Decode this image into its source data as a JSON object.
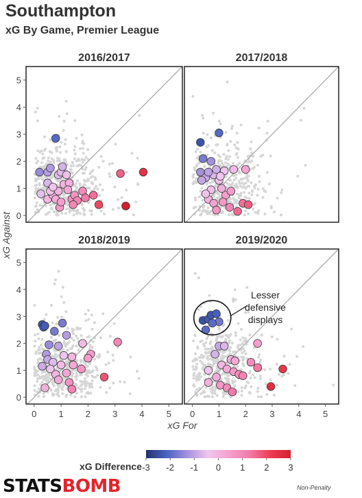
{
  "header": {
    "title": "Southampton",
    "subtitle": "xG By Game, Premier League"
  },
  "legend": {
    "title": "xG Difference",
    "ticks": [
      "-3",
      "-2",
      "-1",
      "0",
      "1",
      "2",
      "3"
    ],
    "colors": [
      "#23306e",
      "#4a63c2",
      "#a592dd",
      "#efc6ee",
      "#f5a0cf",
      "#f27cab",
      "#ee3d55",
      "#d3202f"
    ]
  },
  "footer": {
    "brand_part1": "STATS",
    "brand_part2": "BOMB",
    "note": "Non-Penalty"
  },
  "chart_data": {
    "type": "scatter",
    "xlabel": "xG For",
    "ylabel": "xG Against",
    "xlim": [
      -0.3,
      5.5
    ],
    "ylim": [
      -0.25,
      5.5
    ],
    "x_ticks": [
      0,
      1,
      2,
      3,
      4,
      5
    ],
    "y_ticks": [
      0,
      1,
      2,
      3,
      4,
      5
    ],
    "grid": false,
    "reference_line": "y = x",
    "panels": [
      {
        "title": "2016/2017",
        "points": [
          [
            0.8,
            2.85
          ],
          [
            0.2,
            1.6
          ],
          [
            0.5,
            1.6
          ],
          [
            0.6,
            1.75
          ],
          [
            0.9,
            1.5
          ],
          [
            1.0,
            1.6
          ],
          [
            1.2,
            1.5
          ],
          [
            0.5,
            1.2
          ],
          [
            1.05,
            1.8
          ],
          [
            0.25,
            0.8
          ],
          [
            0.5,
            0.6
          ],
          [
            0.7,
            0.75
          ],
          [
            0.6,
            0.9
          ],
          [
            0.8,
            0.6
          ],
          [
            0.9,
            0.9
          ],
          [
            0.95,
            0.3
          ],
          [
            1.0,
            0.5
          ],
          [
            1.1,
            1.15
          ],
          [
            1.3,
            1.2
          ],
          [
            1.25,
            0.95
          ],
          [
            1.4,
            0.6
          ],
          [
            1.5,
            0.75
          ],
          [
            1.6,
            0.55
          ],
          [
            1.8,
            0.9
          ],
          [
            1.9,
            0.65
          ],
          [
            1.45,
            0.4
          ],
          [
            0.7,
            1.05
          ],
          [
            2.2,
            0.75
          ],
          [
            2.4,
            0.4
          ],
          [
            3.2,
            1.55
          ],
          [
            3.4,
            0.35
          ],
          [
            4.05,
            1.6
          ]
        ]
      },
      {
        "title": "2017/2018",
        "points": [
          [
            1.0,
            3.05
          ],
          [
            0.3,
            2.7
          ],
          [
            0.4,
            2.1
          ],
          [
            0.7,
            2.0
          ],
          [
            0.3,
            1.6
          ],
          [
            0.5,
            1.4
          ],
          [
            0.8,
            1.5
          ],
          [
            0.35,
            1.3
          ],
          [
            0.6,
            1.6
          ],
          [
            0.9,
            1.7
          ],
          [
            1.2,
            1.65
          ],
          [
            1.55,
            1.7
          ],
          [
            2.0,
            1.7
          ],
          [
            0.6,
            0.6
          ],
          [
            0.7,
            0.95
          ],
          [
            0.8,
            0.45
          ],
          [
            1.0,
            1.3
          ],
          [
            1.1,
            1.0
          ],
          [
            1.25,
            0.75
          ],
          [
            1.15,
            0.5
          ],
          [
            1.45,
            0.9
          ],
          [
            0.5,
            0.8
          ],
          [
            0.9,
            0.2
          ],
          [
            1.4,
            0.3
          ],
          [
            1.7,
            0.15
          ],
          [
            1.9,
            0.45
          ],
          [
            2.1,
            0.4
          ],
          [
            1.05,
            1.45
          ]
        ]
      },
      {
        "title": "2018/2019",
        "points": [
          [
            0.3,
            2.7
          ],
          [
            0.35,
            2.6
          ],
          [
            0.4,
            2.65
          ],
          [
            1.05,
            2.75
          ],
          [
            0.75,
            2.45
          ],
          [
            1.2,
            2.3
          ],
          [
            0.55,
            1.95
          ],
          [
            0.9,
            1.9
          ],
          [
            0.45,
            1.6
          ],
          [
            0.5,
            1.4
          ],
          [
            0.3,
            1.15
          ],
          [
            0.7,
            1.3
          ],
          [
            1.1,
            1.55
          ],
          [
            1.4,
            1.5
          ],
          [
            1.8,
            2.0
          ],
          [
            2.1,
            1.6
          ],
          [
            0.6,
            1.05
          ],
          [
            0.8,
            0.85
          ],
          [
            1.0,
            1.2
          ],
          [
            1.2,
            0.9
          ],
          [
            1.45,
            1.2
          ],
          [
            1.75,
            1.05
          ],
          [
            2.0,
            1.45
          ],
          [
            1.3,
            0.55
          ],
          [
            0.4,
            0.35
          ],
          [
            1.4,
            0.3
          ],
          [
            0.9,
            0.65
          ],
          [
            2.6,
            0.75
          ],
          [
            3.1,
            2.05
          ]
        ]
      },
      {
        "title": "2019/2020",
        "points": [
          [
            0.4,
            2.85
          ],
          [
            0.6,
            2.9
          ],
          [
            0.7,
            3.05
          ],
          [
            0.9,
            3.1
          ],
          [
            1.0,
            2.8
          ],
          [
            0.75,
            2.75
          ],
          [
            0.5,
            2.5
          ],
          [
            1.0,
            1.9
          ],
          [
            1.2,
            1.9
          ],
          [
            0.85,
            1.6
          ],
          [
            1.45,
            1.4
          ],
          [
            1.6,
            1.35
          ],
          [
            1.1,
            1.2
          ],
          [
            1.3,
            1.05
          ],
          [
            1.55,
            0.95
          ],
          [
            1.75,
            0.85
          ],
          [
            1.9,
            0.8
          ],
          [
            0.6,
            1.0
          ],
          [
            0.9,
            0.75
          ],
          [
            0.6,
            0.55
          ],
          [
            1.05,
            0.45
          ],
          [
            1.3,
            0.35
          ],
          [
            1.5,
            0.2
          ],
          [
            2.2,
            1.3
          ],
          [
            2.45,
            2.0
          ],
          [
            2.45,
            1.1
          ],
          [
            3.4,
            1.05
          ],
          [
            2.95,
            0.4
          ]
        ],
        "annotation": {
          "text": [
            "Lesser",
            "defensive",
            "displays"
          ],
          "circle_center": [
            0.75,
            2.95
          ]
        }
      }
    ]
  }
}
